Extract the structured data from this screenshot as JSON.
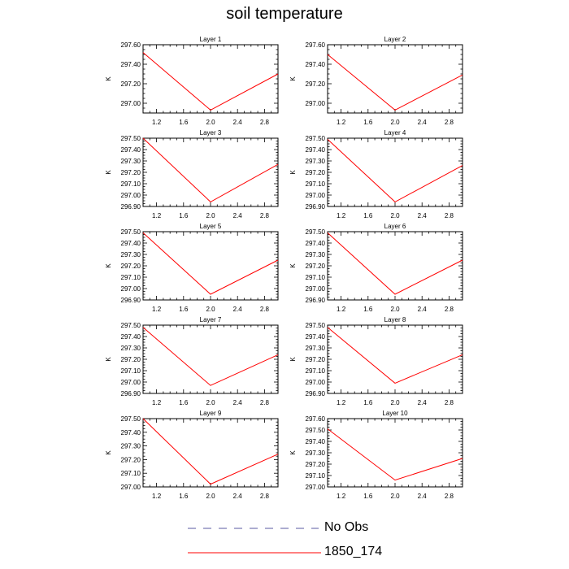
{
  "title": "soil temperature",
  "chart_data": {
    "type": "line",
    "x_ticks": [
      1.2,
      1.6,
      2.0,
      2.4,
      2.8
    ],
    "x_tick_labels": [
      "1.2",
      "1.6",
      "2.0",
      "2.4",
      "2.8"
    ],
    "xlim": [
      1.0,
      3.0
    ],
    "ylabel": "K",
    "series_names": [
      "No Obs",
      "1850_174"
    ],
    "colors": {
      "no_obs": "#5a5aa0",
      "model": "#ff0000"
    },
    "panels": [
      {
        "title": "Layer 1",
        "ylim": [
          296.9,
          297.6
        ],
        "yticks": [
          "297.00",
          "297.20",
          "297.40",
          "297.60"
        ],
        "x": [
          1,
          2,
          3
        ],
        "y": [
          297.52,
          296.93,
          297.3
        ]
      },
      {
        "title": "Layer 2",
        "ylim": [
          296.9,
          297.6
        ],
        "yticks": [
          "297.00",
          "297.20",
          "297.40",
          "297.60"
        ],
        "x": [
          1,
          2,
          3
        ],
        "y": [
          297.5,
          296.93,
          297.29
        ]
      },
      {
        "title": "Layer 3",
        "ylim": [
          296.9,
          297.5
        ],
        "yticks": [
          "296.90",
          "297.00",
          "297.10",
          "297.20",
          "297.30",
          "297.40",
          "297.50"
        ],
        "x": [
          1,
          2,
          3
        ],
        "y": [
          297.5,
          296.94,
          297.27
        ]
      },
      {
        "title": "Layer 4",
        "ylim": [
          296.9,
          297.5
        ],
        "yticks": [
          "296.90",
          "297.00",
          "297.10",
          "297.20",
          "297.30",
          "297.40",
          "297.50"
        ],
        "x": [
          1,
          2,
          3
        ],
        "y": [
          297.49,
          296.94,
          297.26
        ]
      },
      {
        "title": "Layer 5",
        "ylim": [
          296.9,
          297.5
        ],
        "yticks": [
          "296.90",
          "297.00",
          "297.10",
          "297.20",
          "297.30",
          "297.40",
          "297.50"
        ],
        "x": [
          1,
          2,
          3
        ],
        "y": [
          297.49,
          296.95,
          297.25
        ]
      },
      {
        "title": "Layer 6",
        "ylim": [
          296.9,
          297.5
        ],
        "yticks": [
          "296.90",
          "297.00",
          "297.10",
          "297.20",
          "297.30",
          "297.40",
          "297.50"
        ],
        "x": [
          1,
          2,
          3
        ],
        "y": [
          297.49,
          296.95,
          297.25
        ]
      },
      {
        "title": "Layer 7",
        "ylim": [
          296.9,
          297.5
        ],
        "yticks": [
          "296.90",
          "297.00",
          "297.10",
          "297.20",
          "297.30",
          "297.40",
          "297.50"
        ],
        "x": [
          1,
          2,
          3
        ],
        "y": [
          297.48,
          296.97,
          297.24
        ]
      },
      {
        "title": "Layer 8",
        "ylim": [
          296.9,
          297.5
        ],
        "yticks": [
          "296.90",
          "297.00",
          "297.10",
          "297.20",
          "297.30",
          "297.40",
          "297.50"
        ],
        "x": [
          1,
          2,
          3
        ],
        "y": [
          297.48,
          296.99,
          297.24
        ]
      },
      {
        "title": "Layer 9",
        "ylim": [
          297.0,
          297.5
        ],
        "yticks": [
          "297.00",
          "297.10",
          "297.20",
          "297.30",
          "297.40",
          "297.50"
        ],
        "x": [
          1,
          2,
          3
        ],
        "y": [
          297.5,
          297.02,
          297.24
        ]
      },
      {
        "title": "Layer 10",
        "ylim": [
          297.0,
          297.6
        ],
        "yticks": [
          "297.00",
          "297.10",
          "297.20",
          "297.30",
          "297.40",
          "297.50",
          "297.60"
        ],
        "x": [
          1,
          2,
          3
        ],
        "y": [
          297.51,
          297.06,
          297.25
        ]
      }
    ]
  },
  "legend": {
    "no_obs_label": "No Obs",
    "model_label": "1850_174"
  }
}
